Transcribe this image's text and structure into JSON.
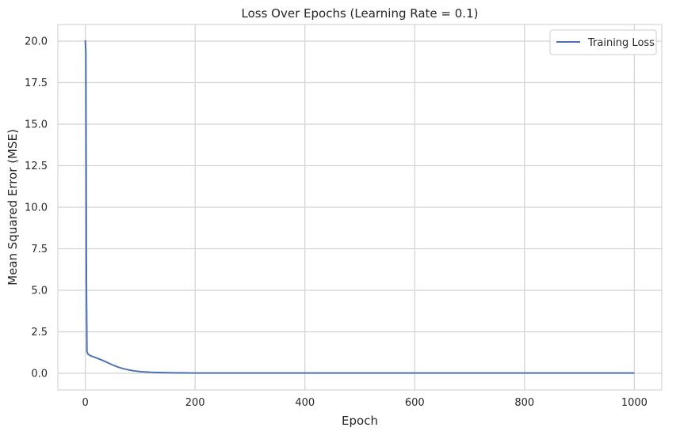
{
  "chart_data": {
    "type": "line",
    "title": "Loss Over Epochs (Learning Rate = 0.1)",
    "xlabel": "Epoch",
    "ylabel": "Mean Squared Error (MSE)",
    "xlim": [
      -50,
      1050
    ],
    "ylim": [
      -1.0,
      21.0
    ],
    "xticks": [
      0,
      200,
      400,
      600,
      800,
      1000
    ],
    "yticks": [
      0.0,
      2.5,
      5.0,
      7.5,
      10.0,
      12.5,
      15.0,
      17.5,
      20.0
    ],
    "xtick_labels": [
      "0",
      "200",
      "400",
      "600",
      "800",
      "1000"
    ],
    "ytick_labels": [
      "0.0",
      "2.5",
      "5.0",
      "7.5",
      "10.0",
      "12.5",
      "15.0",
      "17.5",
      "20.0"
    ],
    "grid": true,
    "legend_position": "top-right",
    "series": [
      {
        "name": "Training Loss",
        "color": "#4c72b0",
        "x": [
          0,
          1,
          2,
          3,
          5,
          10,
          20,
          30,
          40,
          50,
          60,
          70,
          80,
          90,
          100,
          120,
          140,
          160,
          180,
          200,
          300,
          400,
          500,
          600,
          700,
          800,
          900,
          1000
        ],
        "y": [
          20.05,
          19.3,
          5.5,
          1.3,
          1.15,
          1.05,
          0.93,
          0.8,
          0.65,
          0.5,
          0.37,
          0.27,
          0.2,
          0.14,
          0.1,
          0.06,
          0.04,
          0.03,
          0.025,
          0.02,
          0.02,
          0.02,
          0.02,
          0.02,
          0.02,
          0.02,
          0.02,
          0.02
        ]
      }
    ]
  }
}
